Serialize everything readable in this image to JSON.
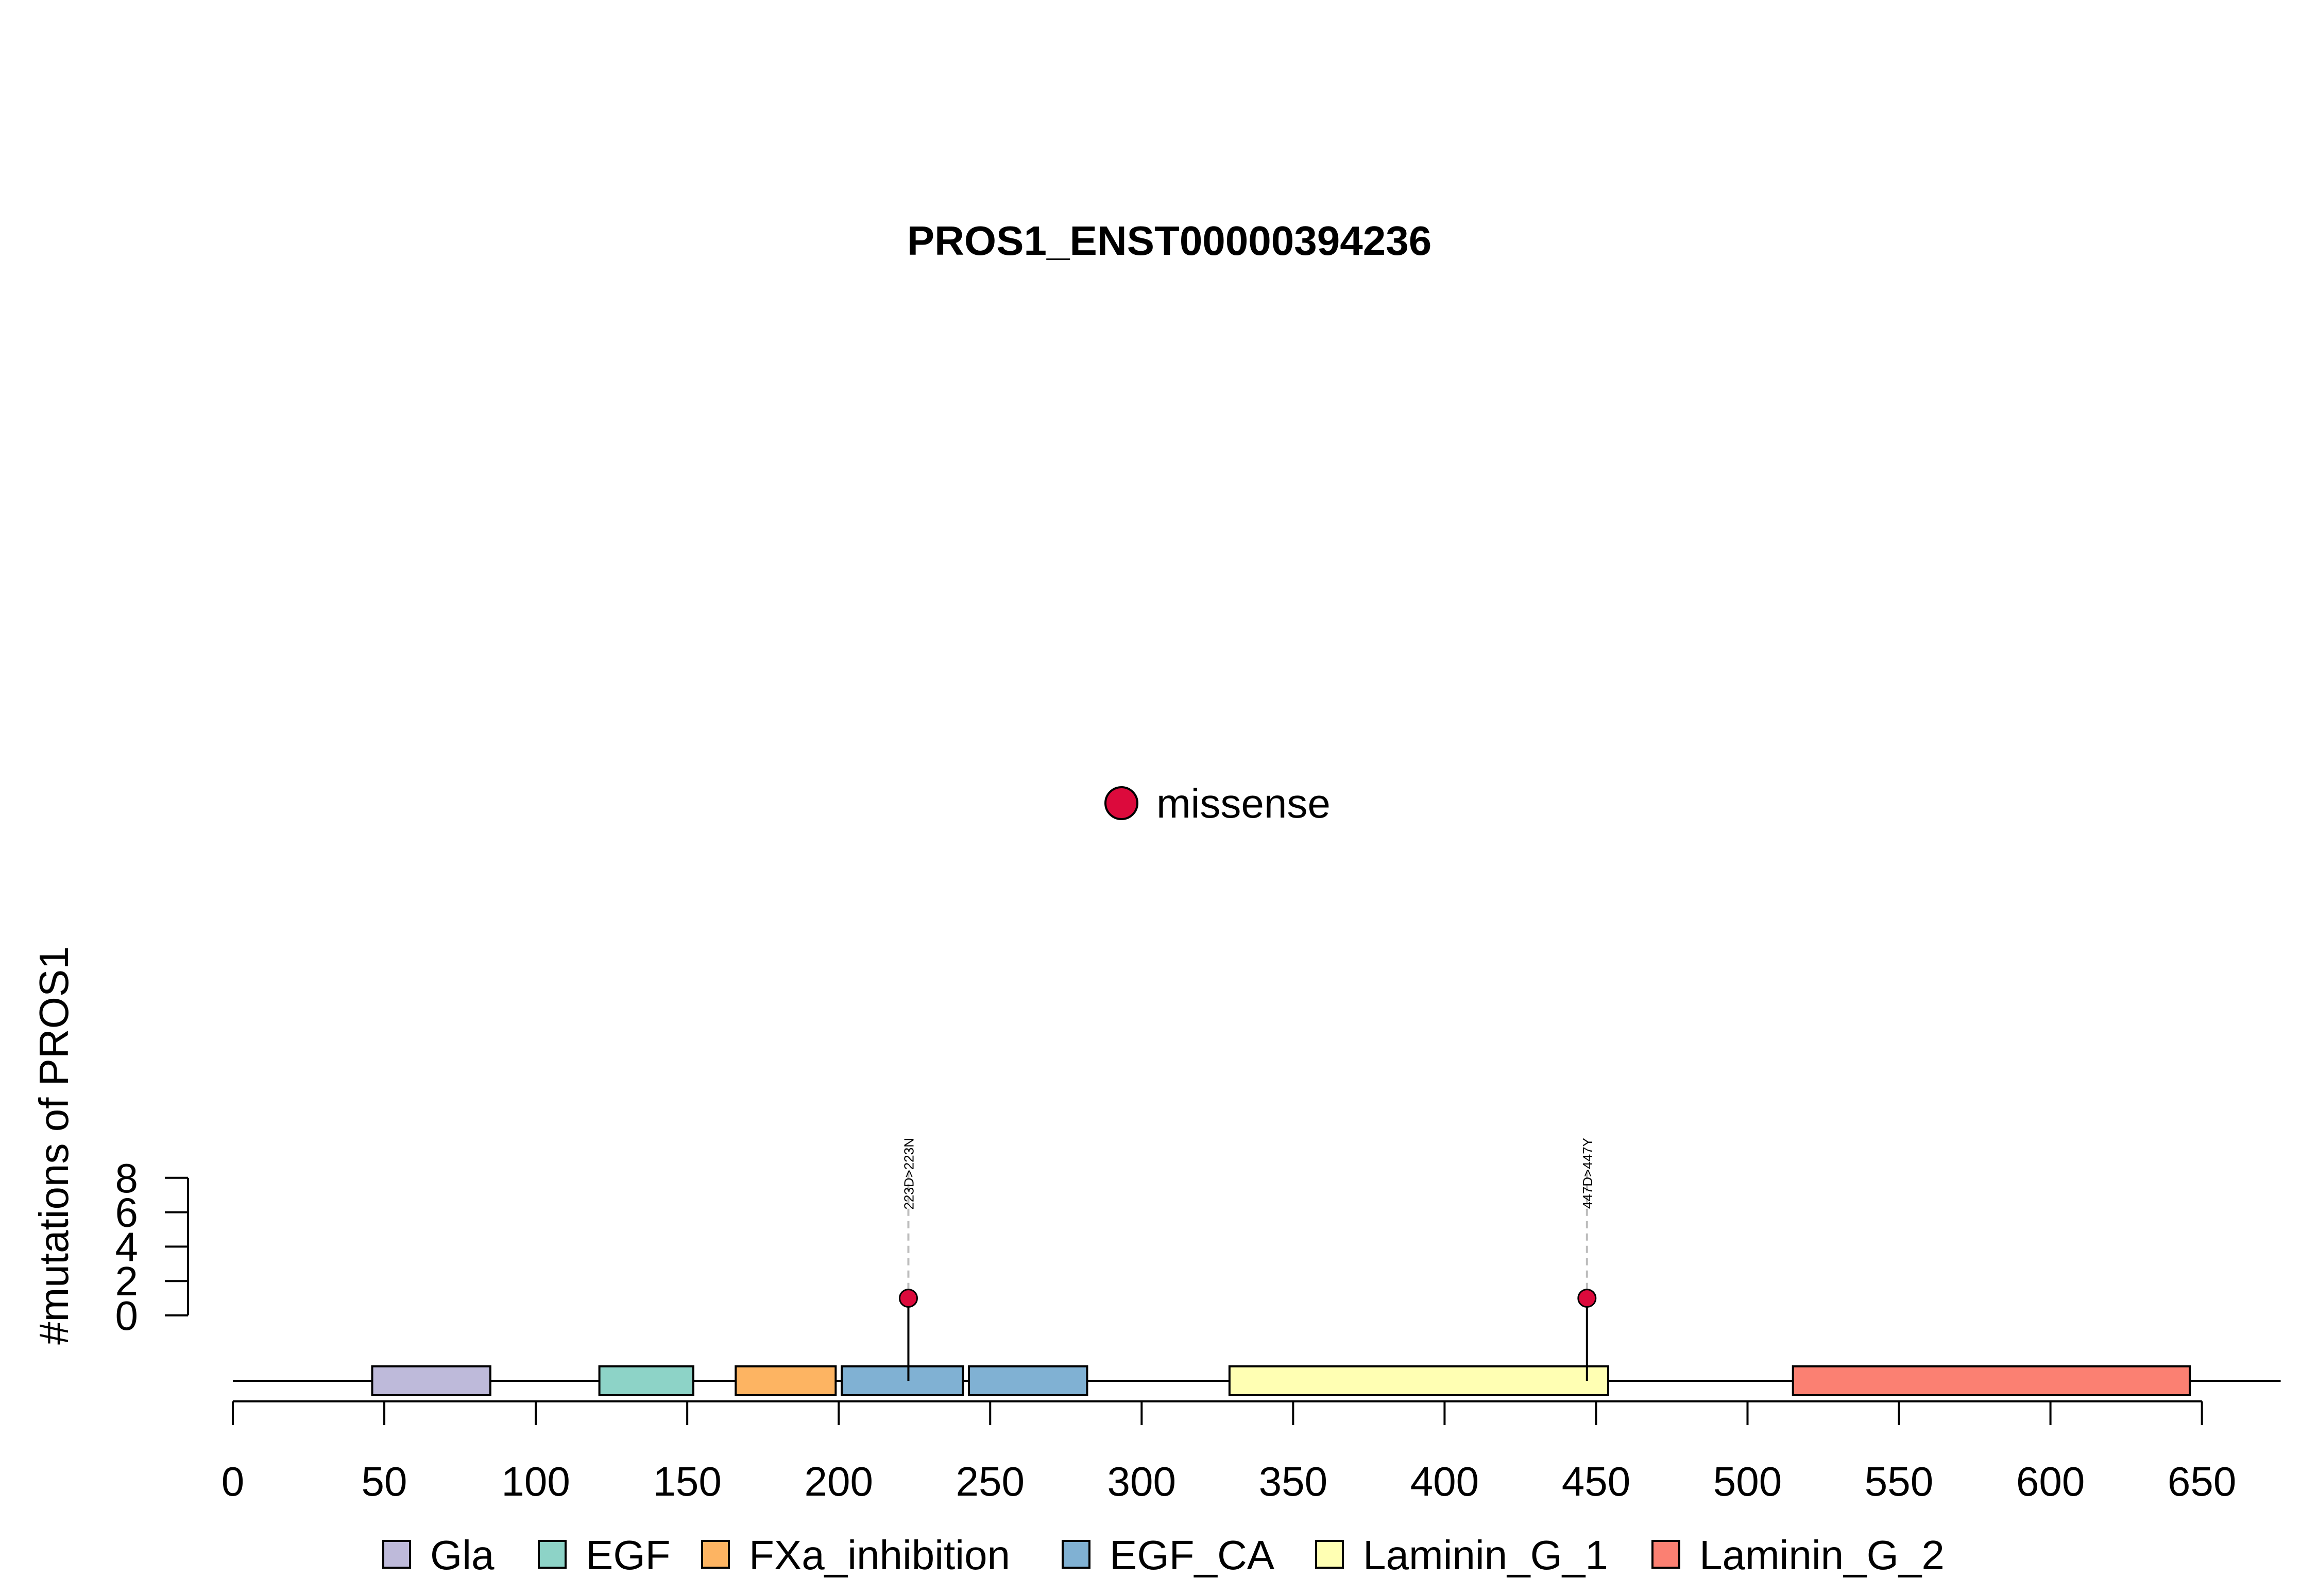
{
  "chart_data": {
    "type": "lollipop",
    "title": "PROS1_ENST00000394236",
    "ylabel": "#mutations of PROS1",
    "xlabel": "",
    "xlim": [
      0,
      650
    ],
    "x_ticks": [
      0,
      50,
      100,
      150,
      200,
      250,
      300,
      350,
      400,
      450,
      500,
      550,
      600,
      650
    ],
    "ylim": [
      0,
      8
    ],
    "y_ticks": [
      0,
      2,
      4,
      6,
      8
    ],
    "protein_length": 676,
    "domains": [
      {
        "name": "Gla",
        "start": 46,
        "end": 85,
        "color": "#BEBADA"
      },
      {
        "name": "EGF",
        "start": 121,
        "end": 152,
        "color": "#8DD3C7"
      },
      {
        "name": "FXa_inhibition",
        "start": 166,
        "end": 199,
        "color": "#FDB462"
      },
      {
        "name": "EGF_CA",
        "start": 201,
        "end": 241,
        "color": "#80B1D3"
      },
      {
        "name": "EGF_CA",
        "start": 243,
        "end": 282,
        "color": "#80B1D3"
      },
      {
        "name": "Laminin_G_1",
        "start": 329,
        "end": 454,
        "color": "#FFFFB3"
      },
      {
        "name": "Laminin_G_2",
        "start": 515,
        "end": 646,
        "color": "#FB8072"
      }
    ],
    "mutations": [
      {
        "position": 223,
        "count": 1,
        "label": "223D>223N",
        "type": "missense"
      },
      {
        "position": 447,
        "count": 1,
        "label": "447D>447Y",
        "type": "missense"
      }
    ],
    "mutation_legend": [
      {
        "label": "missense",
        "color": "#DC0A3C"
      }
    ],
    "domain_legend": [
      {
        "label": "Gla",
        "color": "#BEBADA"
      },
      {
        "label": "EGF",
        "color": "#8DD3C7"
      },
      {
        "label": "FXa_inhibition",
        "color": "#FDB462"
      },
      {
        "label": "EGF_CA",
        "color": "#80B1D3"
      },
      {
        "label": "Laminin_G_1",
        "color": "#FFFFB3"
      },
      {
        "label": "Laminin_G_2",
        "color": "#FB8072"
      }
    ]
  }
}
